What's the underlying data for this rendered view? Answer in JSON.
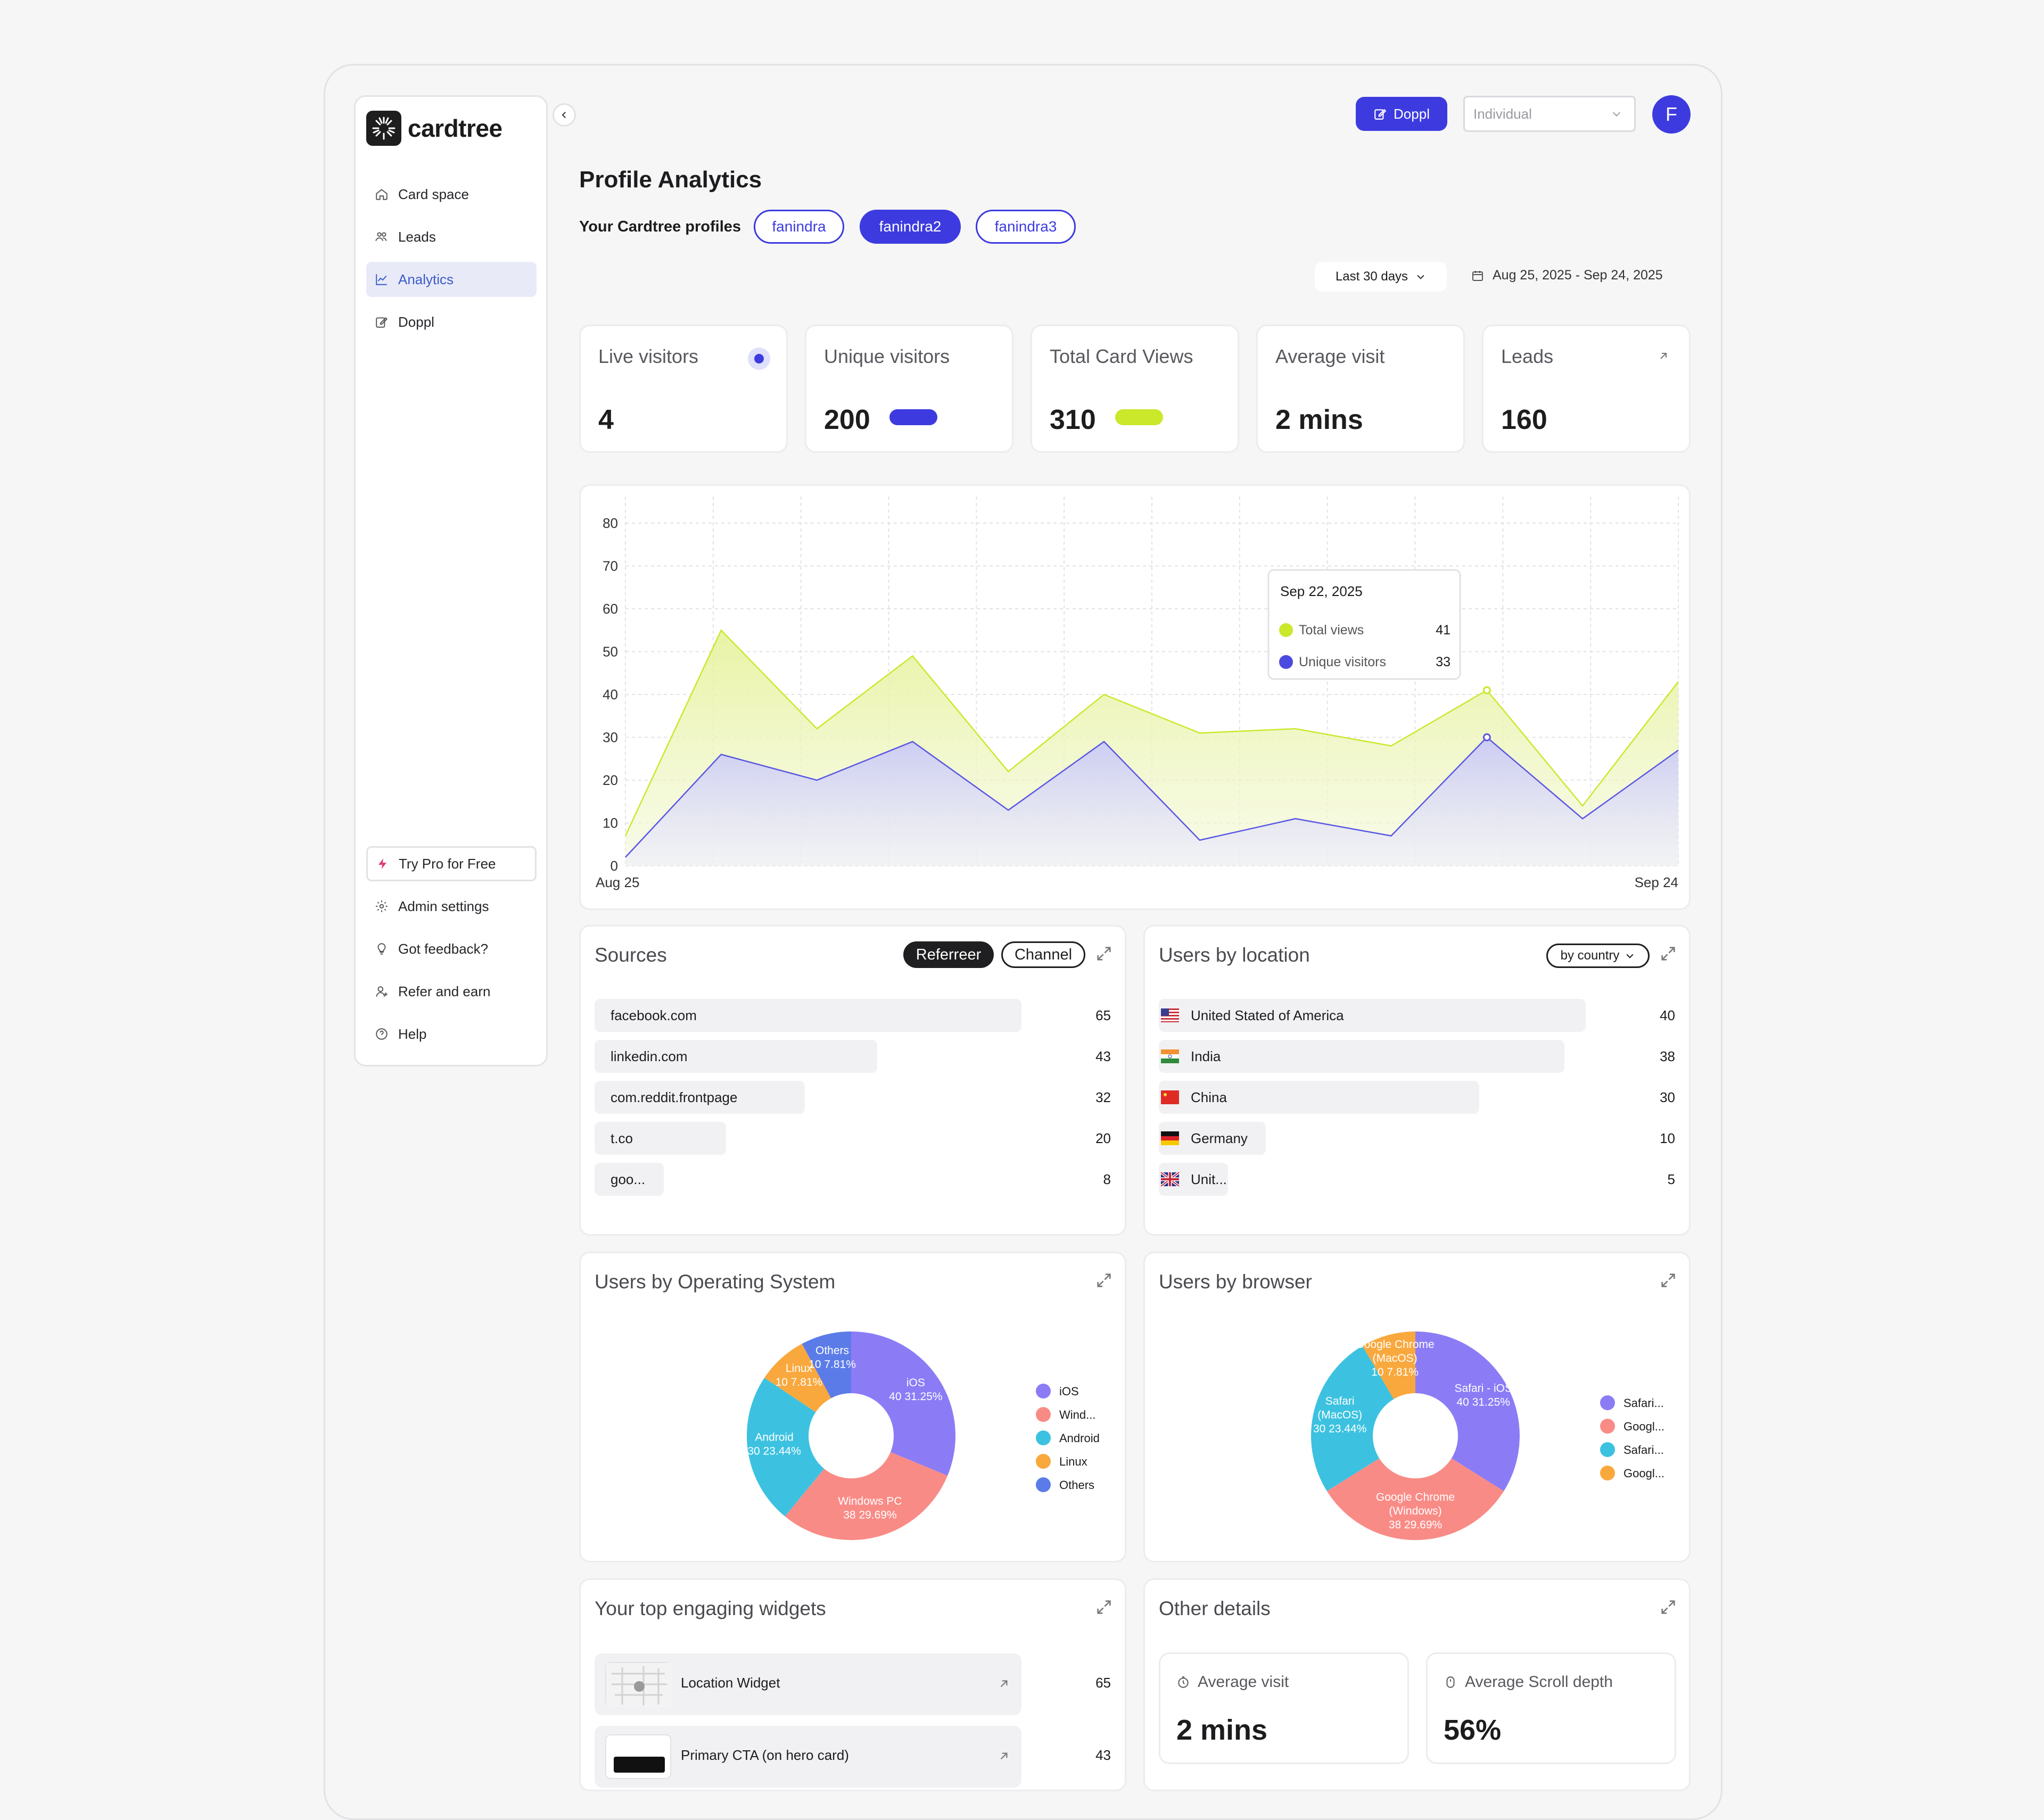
{
  "app": {
    "name": "cardtree"
  },
  "sidebar": {
    "items": [
      {
        "label": "Card space",
        "icon": "home-icon"
      },
      {
        "label": "Leads",
        "icon": "users-icon"
      },
      {
        "label": "Analytics",
        "icon": "chart-icon",
        "active": true
      },
      {
        "label": "Doppl",
        "icon": "edit-icon"
      }
    ],
    "bottom": [
      {
        "label": "Try Pro for Free",
        "icon": "bolt-icon"
      },
      {
        "label": "Admin settings",
        "icon": "gear-icon"
      },
      {
        "label": "Got feedback?",
        "icon": "lightbulb-icon"
      },
      {
        "label": "Refer and earn",
        "icon": "user-plus-icon"
      },
      {
        "label": "Help",
        "icon": "help-icon"
      }
    ]
  },
  "header": {
    "doppl_button": "Doppl",
    "account_select": {
      "value": "Individual"
    },
    "avatar_initial": "F"
  },
  "page": {
    "title": "Profile Analytics",
    "profiles_label": "Your Cardtree profiles",
    "profiles": [
      {
        "label": "fanindra",
        "selected": false
      },
      {
        "label": "fanindra2",
        "selected": true
      },
      {
        "label": "fanindra3",
        "selected": false
      }
    ],
    "range": "Last 30 days",
    "date_range": "Aug 25, 2025 - Sep 24, 2025"
  },
  "stats": [
    {
      "label": "Live visitors",
      "value": "4"
    },
    {
      "label": "Unique visitors",
      "value": "200"
    },
    {
      "label": "Total Card Views",
      "value": "310"
    },
    {
      "label": "Average visit",
      "value": "2 mins"
    },
    {
      "label": "Leads",
      "value": "160"
    }
  ],
  "colors": {
    "accent": "#3d3bdf",
    "lime": "#cbe82b",
    "ios": "#8b7cf6",
    "windows": "#f98b86",
    "android": "#3cc2e0",
    "linux": "#f9a83d",
    "others": "#5b7ce8"
  },
  "chart_data": {
    "type": "area",
    "x_start_label": "Aug 25",
    "x_end_label": "Sep 24",
    "yticks": [
      0,
      10,
      20,
      30,
      40,
      50,
      60,
      70,
      80
    ],
    "ylim": [
      0,
      80
    ],
    "series": [
      {
        "name": "Total views",
        "color": "#cbe82b",
        "values": [
          7,
          55,
          32,
          49,
          22,
          40,
          31,
          32,
          28,
          41,
          14,
          43
        ]
      },
      {
        "name": "Unique visitors",
        "color": "#4b4ae0",
        "values": [
          2,
          26,
          20,
          29,
          13,
          29,
          6,
          11,
          7,
          30,
          11,
          27
        ]
      }
    ],
    "tooltip": {
      "date": "Sep 22, 2025",
      "rows": [
        {
          "label": "Total views",
          "value": "41"
        },
        {
          "label": "Unique visitors",
          "value": "33"
        }
      ]
    }
  },
  "sources": {
    "title": "Sources",
    "tabs": [
      "Referreer",
      "Channel"
    ],
    "rows": [
      {
        "label": "facebook.com",
        "value": 65
      },
      {
        "label": "linkedin.com",
        "value": 43
      },
      {
        "label": "com.reddit.frontpage",
        "value": 32
      },
      {
        "label": "t.co",
        "value": 20
      },
      {
        "label": "goo...",
        "value": 8
      }
    ]
  },
  "location": {
    "title": "Users by location",
    "filter": "by country",
    "rows": [
      {
        "label": "United Stated of America",
        "value": 40,
        "flag": "us-flag-icon"
      },
      {
        "label": "India",
        "value": 38,
        "flag": "india-flag-icon"
      },
      {
        "label": "China",
        "value": 30,
        "flag": "china-flag-icon"
      },
      {
        "label": "Germany",
        "value": 10,
        "flag": "germany-flag-icon"
      },
      {
        "label": "Unit...",
        "value": 5,
        "flag": "uk-flag-icon"
      }
    ]
  },
  "os": {
    "title": "Users by Operating System",
    "slices": [
      {
        "name": "iOS",
        "value": 40,
        "pct": "31.25%",
        "color": "#8b7cf6"
      },
      {
        "name": "Windows PC",
        "value": 38,
        "pct": "29.69%",
        "color": "#f98b86"
      },
      {
        "name": "Android",
        "value": 30,
        "pct": "23.44%",
        "color": "#3cc2e0"
      },
      {
        "name": "Linux",
        "value": 10,
        "pct": "7.81%",
        "color": "#f9a83d"
      },
      {
        "name": "Others",
        "value": 10,
        "pct": "7.81%",
        "color": "#5b7ce8"
      }
    ],
    "legend": [
      "iOS",
      "Wind...",
      "Android",
      "Linux",
      "Others"
    ]
  },
  "browser": {
    "title": "Users by browser",
    "slices": [
      {
        "name": "Safari - iOS",
        "value": 40,
        "pct": "31.25%",
        "color": "#8b7cf6"
      },
      {
        "name": "Google Chrome (Windows)",
        "value": 38,
        "pct": "29.69%",
        "color": "#f98b86"
      },
      {
        "name": "Safari (MacOS)",
        "value": 30,
        "pct": "23.44%",
        "color": "#3cc2e0"
      },
      {
        "name": "Google Chrome (MacOS)",
        "value": 10,
        "pct": "7.81%",
        "color": "#f9a83d"
      }
    ],
    "legend": [
      "Safari...",
      "Googl...",
      "Safari...",
      "Googl..."
    ]
  },
  "widgets": {
    "title": "Your top engaging widgets",
    "rows": [
      {
        "label": "Location Widget",
        "value": 65
      },
      {
        "label": "Primary CTA (on hero card)",
        "value": 43
      }
    ]
  },
  "other": {
    "title": "Other details",
    "items": [
      {
        "label": "Average visit",
        "value": "2 mins"
      },
      {
        "label": "Average Scroll depth",
        "value": "56%"
      }
    ]
  }
}
